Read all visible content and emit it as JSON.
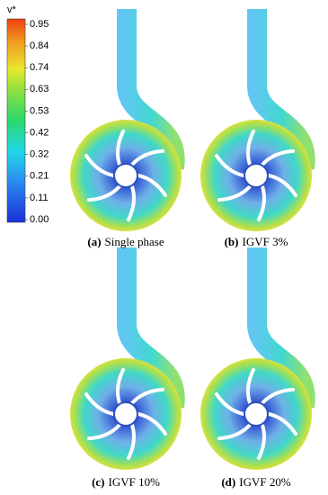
{
  "colorbar": {
    "title": "v*",
    "ticks": [
      "0.95",
      "0.84",
      "0.74",
      "0.63",
      "0.53",
      "0.42",
      "0.32",
      "0.21",
      "0.11",
      "0.00"
    ]
  },
  "panels": [
    {
      "label": "(a)",
      "caption": "Single phase"
    },
    {
      "label": "(b)",
      "caption": "IGVF 3%"
    },
    {
      "label": "(c)",
      "caption": "IGVF 10%"
    },
    {
      "label": "(d)",
      "caption": "IGVF 20%"
    }
  ]
}
